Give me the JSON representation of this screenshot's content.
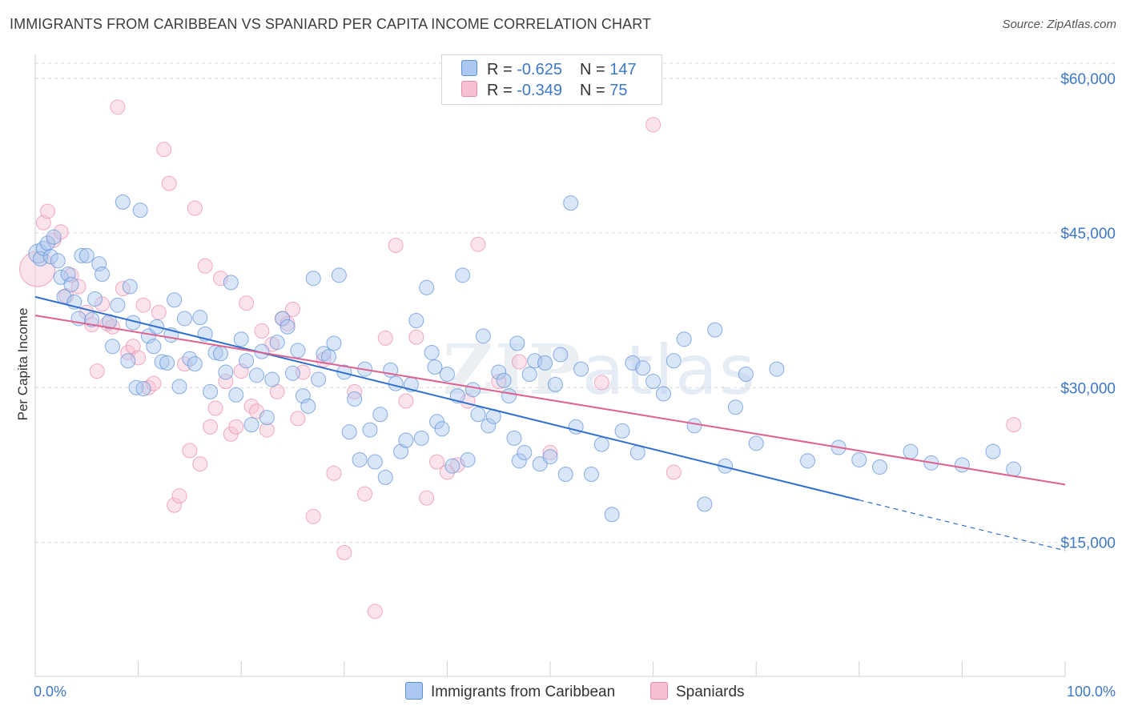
{
  "header": {
    "title": "IMMIGRANTS FROM CARIBBEAN VS SPANIARD PER CAPITA INCOME CORRELATION CHART",
    "source": "Source: ZipAtlas.com"
  },
  "watermark": {
    "zip": "ZIP",
    "atlas": "atlas"
  },
  "legend": {
    "rows": [
      {
        "r_label": "R = ",
        "r_value": "-0.625",
        "n_label": "N = ",
        "n_value": "147"
      },
      {
        "r_label": "R = ",
        "r_value": "-0.349",
        "n_label": "N = ",
        "n_value": "75"
      }
    ]
  },
  "colors": {
    "blue_fill": "#aac8f0",
    "blue_stroke": "#5b8fd6",
    "blue_line": "#2f6fd0",
    "pink_fill": "#f7c0d2",
    "pink_stroke": "#e98aab",
    "pink_line": "#e0608e",
    "grid": "#d9d9d9",
    "tick_text": "#3d78c9"
  },
  "chart_data": {
    "type": "scatter",
    "title": "IMMIGRANTS FROM CARIBBEAN VS SPANIARD PER CAPITA INCOME CORRELATION CHART",
    "xlabel": "",
    "ylabel": "Per Capita Income",
    "xlim": [
      0,
      100
    ],
    "ylim": [
      2000,
      62000
    ],
    "x_tick_labels": [
      "0.0%",
      "100.0%"
    ],
    "y_ticks": [
      15000,
      30000,
      45000,
      60000
    ],
    "y_tick_labels": [
      "$15,000",
      "$30,000",
      "$45,000",
      "$60,000"
    ],
    "grid": true,
    "legend_position": "top-center",
    "series": [
      {
        "name": "Immigrants from Caribbean",
        "color": "#5b8fd6",
        "trend": {
          "x": [
            0,
            80,
            100
          ],
          "y": [
            38800,
            19100,
            14200
          ],
          "solid_until": 80
        },
        "points": [
          [
            0.3,
            43000
          ],
          [
            0.5,
            42500
          ],
          [
            0.8,
            43500
          ],
          [
            1.2,
            44000
          ],
          [
            1.5,
            42700
          ],
          [
            1.8,
            44600
          ],
          [
            2.2,
            42300
          ],
          [
            2.5,
            40700
          ],
          [
            2.8,
            38800
          ],
          [
            3.2,
            41000
          ],
          [
            3.5,
            40000
          ],
          [
            3.8,
            38300
          ],
          [
            4.2,
            36700
          ],
          [
            4.5,
            42800
          ],
          [
            5.0,
            42800
          ],
          [
            5.5,
            36600
          ],
          [
            5.8,
            38600
          ],
          [
            6.2,
            42000
          ],
          [
            6.5,
            41000
          ],
          [
            7.2,
            36400
          ],
          [
            7.5,
            34000
          ],
          [
            8.0,
            38000
          ],
          [
            8.5,
            48000
          ],
          [
            9.0,
            32600
          ],
          [
            9.2,
            39800
          ],
          [
            9.5,
            36300
          ],
          [
            9.8,
            30000
          ],
          [
            10.2,
            47200
          ],
          [
            10.5,
            29900
          ],
          [
            11.0,
            35000
          ],
          [
            11.5,
            34000
          ],
          [
            11.8,
            35900
          ],
          [
            12.3,
            32500
          ],
          [
            12.8,
            32400
          ],
          [
            13.2,
            35100
          ],
          [
            13.5,
            38500
          ],
          [
            14.0,
            30100
          ],
          [
            14.5,
            36700
          ],
          [
            15.0,
            32800
          ],
          [
            15.5,
            32300
          ],
          [
            16.0,
            36800
          ],
          [
            16.5,
            35200
          ],
          [
            17.0,
            29600
          ],
          [
            17.5,
            33400
          ],
          [
            18.0,
            33300
          ],
          [
            18.5,
            31500
          ],
          [
            19.0,
            40200
          ],
          [
            19.5,
            29300
          ],
          [
            20.0,
            34700
          ],
          [
            20.5,
            32600
          ],
          [
            21.0,
            26400
          ],
          [
            21.5,
            31200
          ],
          [
            22.0,
            33500
          ],
          [
            22.5,
            27100
          ],
          [
            23.0,
            30800
          ],
          [
            23.5,
            34400
          ],
          [
            24.0,
            36700
          ],
          [
            24.5,
            35900
          ],
          [
            25.0,
            31400
          ],
          [
            25.5,
            33600
          ],
          [
            26.0,
            29200
          ],
          [
            26.5,
            28200
          ],
          [
            27.0,
            40600
          ],
          [
            27.5,
            30800
          ],
          [
            28.0,
            33300
          ],
          [
            28.5,
            33000
          ],
          [
            29.0,
            34300
          ],
          [
            29.5,
            40900
          ],
          [
            30.0,
            31500
          ],
          [
            30.5,
            25700
          ],
          [
            31.0,
            28900
          ],
          [
            31.5,
            23000
          ],
          [
            32.0,
            31800
          ],
          [
            32.5,
            25900
          ],
          [
            33.0,
            22800
          ],
          [
            33.5,
            27400
          ],
          [
            34.0,
            21300
          ],
          [
            34.5,
            31700
          ],
          [
            35.0,
            30400
          ],
          [
            35.5,
            23800
          ],
          [
            36.0,
            24900
          ],
          [
            36.5,
            30300
          ],
          [
            37.0,
            36500
          ],
          [
            37.5,
            25100
          ],
          [
            38.0,
            39700
          ],
          [
            38.5,
            33400
          ],
          [
            39.0,
            26700
          ],
          [
            39.5,
            26000
          ],
          [
            40.0,
            31300
          ],
          [
            40.5,
            22400
          ],
          [
            41.0,
            29200
          ],
          [
            41.5,
            40900
          ],
          [
            42.0,
            23000
          ],
          [
            42.5,
            29800
          ],
          [
            43.0,
            27400
          ],
          [
            43.5,
            35000
          ],
          [
            44.0,
            26300
          ],
          [
            44.5,
            27200
          ],
          [
            45.0,
            31500
          ],
          [
            45.5,
            30700
          ],
          [
            46.0,
            29200
          ],
          [
            46.5,
            25100
          ],
          [
            47.0,
            22900
          ],
          [
            47.5,
            23700
          ],
          [
            48.0,
            31300
          ],
          [
            48.5,
            32600
          ],
          [
            49.0,
            22600
          ],
          [
            49.5,
            32400
          ],
          [
            50.0,
            23300
          ],
          [
            50.5,
            30300
          ],
          [
            51.0,
            33200
          ],
          [
            51.5,
            21600
          ],
          [
            52.0,
            47900
          ],
          [
            52.5,
            26200
          ],
          [
            53.0,
            31800
          ],
          [
            54.0,
            21600
          ],
          [
            55.0,
            24500
          ],
          [
            56.0,
            17700
          ],
          [
            57.0,
            25800
          ],
          [
            58.0,
            32400
          ],
          [
            59.0,
            31900
          ],
          [
            60.0,
            30600
          ],
          [
            61.0,
            29400
          ],
          [
            62.0,
            32600
          ],
          [
            63.0,
            34700
          ],
          [
            64.0,
            26300
          ],
          [
            65.0,
            18700
          ],
          [
            66.0,
            35600
          ],
          [
            67.0,
            22400
          ],
          [
            68.0,
            28100
          ],
          [
            69.0,
            31300
          ],
          [
            70.0,
            24600
          ],
          [
            72.0,
            31800
          ],
          [
            75.0,
            22900
          ],
          [
            78.0,
            24200
          ],
          [
            80.0,
            23000
          ],
          [
            82.0,
            22300
          ],
          [
            85.0,
            23800
          ],
          [
            87.0,
            22700
          ],
          [
            90.0,
            22500
          ],
          [
            93.0,
            23800
          ],
          [
            95.0,
            22100
          ],
          [
            58.5,
            23700
          ],
          [
            46.8,
            34300
          ],
          [
            38.8,
            32000
          ]
        ]
      },
      {
        "name": "Spaniards",
        "color": "#e98aab",
        "trend": {
          "x": [
            0,
            100
          ],
          "y": [
            37000,
            20600
          ]
        },
        "points": [
          [
            0.2,
            41500
          ],
          [
            0.8,
            46000
          ],
          [
            1.2,
            47100
          ],
          [
            1.8,
            44300
          ],
          [
            2.5,
            45100
          ],
          [
            3.0,
            38900
          ],
          [
            3.5,
            40900
          ],
          [
            4.2,
            39800
          ],
          [
            5.0,
            37300
          ],
          [
            5.5,
            36100
          ],
          [
            6.0,
            31600
          ],
          [
            6.5,
            38100
          ],
          [
            7.0,
            36200
          ],
          [
            7.5,
            35900
          ],
          [
            8.0,
            57200
          ],
          [
            8.5,
            39600
          ],
          [
            9.0,
            33400
          ],
          [
            9.5,
            34000
          ],
          [
            10.0,
            32900
          ],
          [
            10.5,
            38000
          ],
          [
            11.0,
            30000
          ],
          [
            11.5,
            30400
          ],
          [
            12.0,
            37300
          ],
          [
            12.5,
            53100
          ],
          [
            13.0,
            49800
          ],
          [
            13.5,
            18600
          ],
          [
            14.0,
            19500
          ],
          [
            14.5,
            32300
          ],
          [
            15.0,
            23900
          ],
          [
            15.5,
            47400
          ],
          [
            16.0,
            22600
          ],
          [
            16.5,
            41800
          ],
          [
            17.0,
            26200
          ],
          [
            17.5,
            28000
          ],
          [
            18.0,
            40600
          ],
          [
            18.5,
            30600
          ],
          [
            19.0,
            25500
          ],
          [
            19.5,
            26200
          ],
          [
            20.0,
            31600
          ],
          [
            20.5,
            38200
          ],
          [
            21.0,
            28200
          ],
          [
            21.5,
            27700
          ],
          [
            22.0,
            35500
          ],
          [
            22.5,
            25900
          ],
          [
            23.0,
            34200
          ],
          [
            23.5,
            29600
          ],
          [
            24.0,
            36700
          ],
          [
            24.5,
            36200
          ],
          [
            25.0,
            37600
          ],
          [
            25.5,
            27000
          ],
          [
            26.0,
            31500
          ],
          [
            27.0,
            17500
          ],
          [
            28.0,
            32700
          ],
          [
            29.0,
            21700
          ],
          [
            30.0,
            14000
          ],
          [
            31.0,
            29600
          ],
          [
            32.0,
            19700
          ],
          [
            33.0,
            8300
          ],
          [
            34.0,
            34800
          ],
          [
            35.0,
            43800
          ],
          [
            36.0,
            28700
          ],
          [
            37.0,
            34900
          ],
          [
            38.0,
            19300
          ],
          [
            39.0,
            22800
          ],
          [
            40.0,
            21800
          ],
          [
            41.0,
            22500
          ],
          [
            42.0,
            28700
          ],
          [
            43.0,
            43900
          ],
          [
            45.0,
            30600
          ],
          [
            47.0,
            32500
          ],
          [
            50.0,
            23700
          ],
          [
            55.0,
            30500
          ],
          [
            60.0,
            55500
          ],
          [
            62.0,
            21800
          ],
          [
            95.0,
            26400
          ]
        ]
      }
    ]
  },
  "bottom_legend": [
    {
      "label": "Immigrants from Caribbean"
    },
    {
      "label": "Spaniards"
    }
  ]
}
